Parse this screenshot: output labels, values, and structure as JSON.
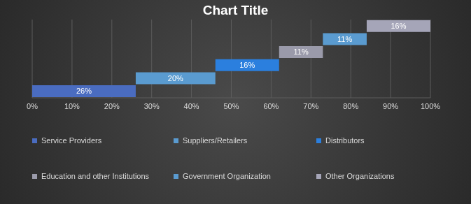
{
  "chart_data": {
    "type": "waterfall",
    "title": "Chart Title",
    "orientation": "horizontal",
    "categories": [
      "Service Providers",
      "Suppliers/Retailers",
      "Distributors",
      "Education and other Institutions",
      "Government Organization",
      "Other Organizations"
    ],
    "values": [
      26,
      20,
      16,
      11,
      11,
      16
    ],
    "value_labels": [
      "26%",
      "20%",
      "16%",
      "11%",
      "11%",
      "16%"
    ],
    "colors": [
      "#4a6cc0",
      "#5a9bd0",
      "#2b7fde",
      "#9a9aaa",
      "#5a9bd0",
      "#a5a5b8"
    ],
    "xlim": [
      0,
      100
    ],
    "xticks": [
      {
        "value": 0,
        "label": "0%"
      },
      {
        "value": 10,
        "label": "10%"
      },
      {
        "value": 20,
        "label": "20%"
      },
      {
        "value": 30,
        "label": "30%"
      },
      {
        "value": 40,
        "label": "40%"
      },
      {
        "value": 50,
        "label": "50%"
      },
      {
        "value": 60,
        "label": "60%"
      },
      {
        "value": 70,
        "label": "70%"
      },
      {
        "value": 80,
        "label": "80%"
      },
      {
        "value": 90,
        "label": "90%"
      },
      {
        "value": 100,
        "label": "100%"
      }
    ],
    "grid": true,
    "data_labels": true,
    "tick_labels": "x",
    "legend": "bottom"
  }
}
